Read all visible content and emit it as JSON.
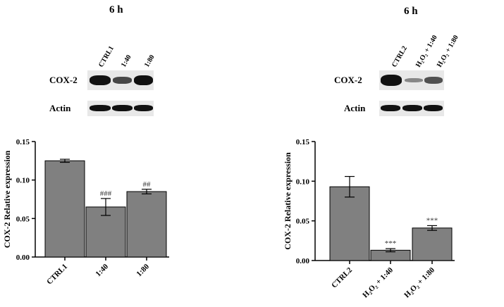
{
  "panels": [
    {
      "time_label": "6 h",
      "lanes": [
        "CTRL1",
        "1:40",
        "1:80"
      ],
      "blot_rows": [
        {
          "label": "COX-2",
          "band_intensity": [
            1.0,
            0.65,
            0.95
          ]
        },
        {
          "label": "Actin",
          "band_intensity": [
            0.95,
            0.95,
            0.95
          ]
        }
      ]
    },
    {
      "time_label": "6 h",
      "lanes": [
        "CTRL2",
        "H₂O₂ + 1:40",
        "H₂O₂ + 1:80"
      ],
      "blot_rows": [
        {
          "label": "COX-2",
          "band_intensity": [
            1.0,
            0.35,
            0.6
          ]
        },
        {
          "label": "Actin",
          "band_intensity": [
            0.95,
            0.95,
            0.95
          ]
        }
      ]
    }
  ],
  "chart_data": [
    {
      "type": "bar",
      "ylabel": "COX-2 Relative expression",
      "categories": [
        "CTRL1",
        "1:40",
        "1:80"
      ],
      "values": [
        0.125,
        0.065,
        0.085
      ],
      "errors": [
        0.002,
        0.011,
        0.003
      ],
      "annotations": [
        "",
        "###",
        "##"
      ],
      "ylim": [
        0,
        0.15
      ],
      "yticks": [
        "0.00",
        "0.05",
        "0.10",
        "0.15"
      ],
      "bar_color": "#808080"
    },
    {
      "type": "bar",
      "ylabel": "COX-2 Relative expression",
      "categories": [
        "CTRL2",
        "H₂O₂ + 1:40",
        "H₂O₂ + 1:80"
      ],
      "values": [
        0.093,
        0.013,
        0.041
      ],
      "errors": [
        0.013,
        0.002,
        0.003
      ],
      "annotations": [
        "",
        "***",
        "***"
      ],
      "ylim": [
        0,
        0.15
      ],
      "yticks": [
        "0.00",
        "0.05",
        "0.10",
        "0.15"
      ],
      "bar_color": "#808080"
    }
  ]
}
